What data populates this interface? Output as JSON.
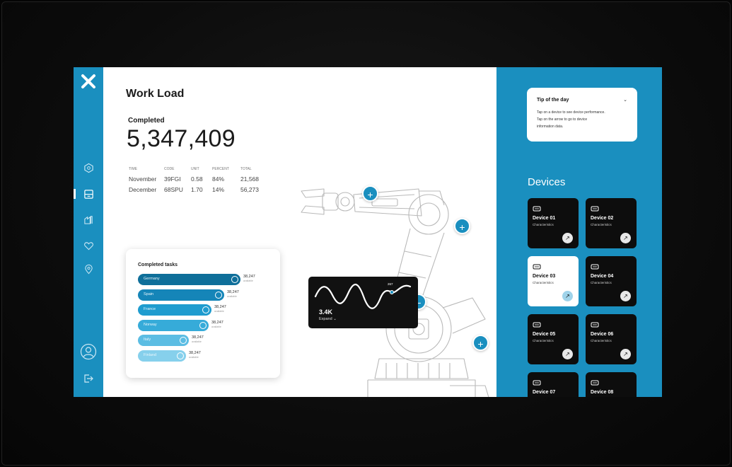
{
  "header": {
    "title": "Work Load"
  },
  "summary": {
    "completed_label": "Completed",
    "completed_value": "5,347,409"
  },
  "stats": {
    "columns": [
      "TIME",
      "CODE",
      "UNIT",
      "PERCENT",
      "TOTAL"
    ],
    "rows": [
      [
        "November",
        "39FGI",
        "0.58",
        "84%",
        "21,568"
      ],
      [
        "December",
        "68SPU",
        "1.70",
        "14%",
        "56,273"
      ]
    ]
  },
  "tasks": {
    "title": "Completed tasks",
    "items": [
      {
        "label": "Germany",
        "value": "38,247",
        "sub": "available",
        "color": "#0f6f9a"
      },
      {
        "label": "Spain",
        "value": "38,247",
        "sub": "available",
        "color": "#1585b8"
      },
      {
        "label": "France",
        "value": "38,247",
        "sub": "available",
        "color": "#1f9ccf"
      },
      {
        "label": "Norway",
        "value": "38,247",
        "sub": "available",
        "color": "#36abd9"
      },
      {
        "label": "Italy",
        "value": "38,247",
        "sub": "available",
        "color": "#5cbde3"
      },
      {
        "label": "Finland",
        "value": "38,247",
        "sub": "available",
        "color": "#86d0ec"
      }
    ]
  },
  "wave": {
    "value": "3.4K",
    "expand_label": "Expand",
    "peak_label": "267"
  },
  "tip": {
    "title": "Tip of the day",
    "lines": [
      "Tap on a device to see device performance.",
      "Tap on the arrow to go to device",
      "information data."
    ]
  },
  "devices": {
    "title": "Devices",
    "items": [
      {
        "name": "Device 01",
        "sub": "Characteristics",
        "selected": false
      },
      {
        "name": "Device 02",
        "sub": "Characteristics",
        "selected": false
      },
      {
        "name": "Device 03",
        "sub": "Characteristics",
        "selected": true
      },
      {
        "name": "Device 04",
        "sub": "Characteristics",
        "selected": false
      },
      {
        "name": "Device 05",
        "sub": "Characteristics",
        "selected": false
      },
      {
        "name": "Device 06",
        "sub": "Characteristics",
        "selected": false
      },
      {
        "name": "Device 07",
        "sub": "Characteristics",
        "selected": false
      },
      {
        "name": "Device 08",
        "sub": "Characteristics",
        "selected": false
      }
    ]
  },
  "colors": {
    "accent": "#1a8fbf",
    "dark_card": "#0d0d0d",
    "selected_arrow": "#9fd3ea"
  },
  "icons": [
    "close-icon",
    "hexagon-icon",
    "dashboard-icon",
    "factory-icon",
    "heart-icon",
    "location-icon",
    "user-avatar-icon",
    "logout-icon",
    "plus-icon",
    "minus-icon",
    "chevron-down-icon",
    "arrow-up-right-icon"
  ]
}
